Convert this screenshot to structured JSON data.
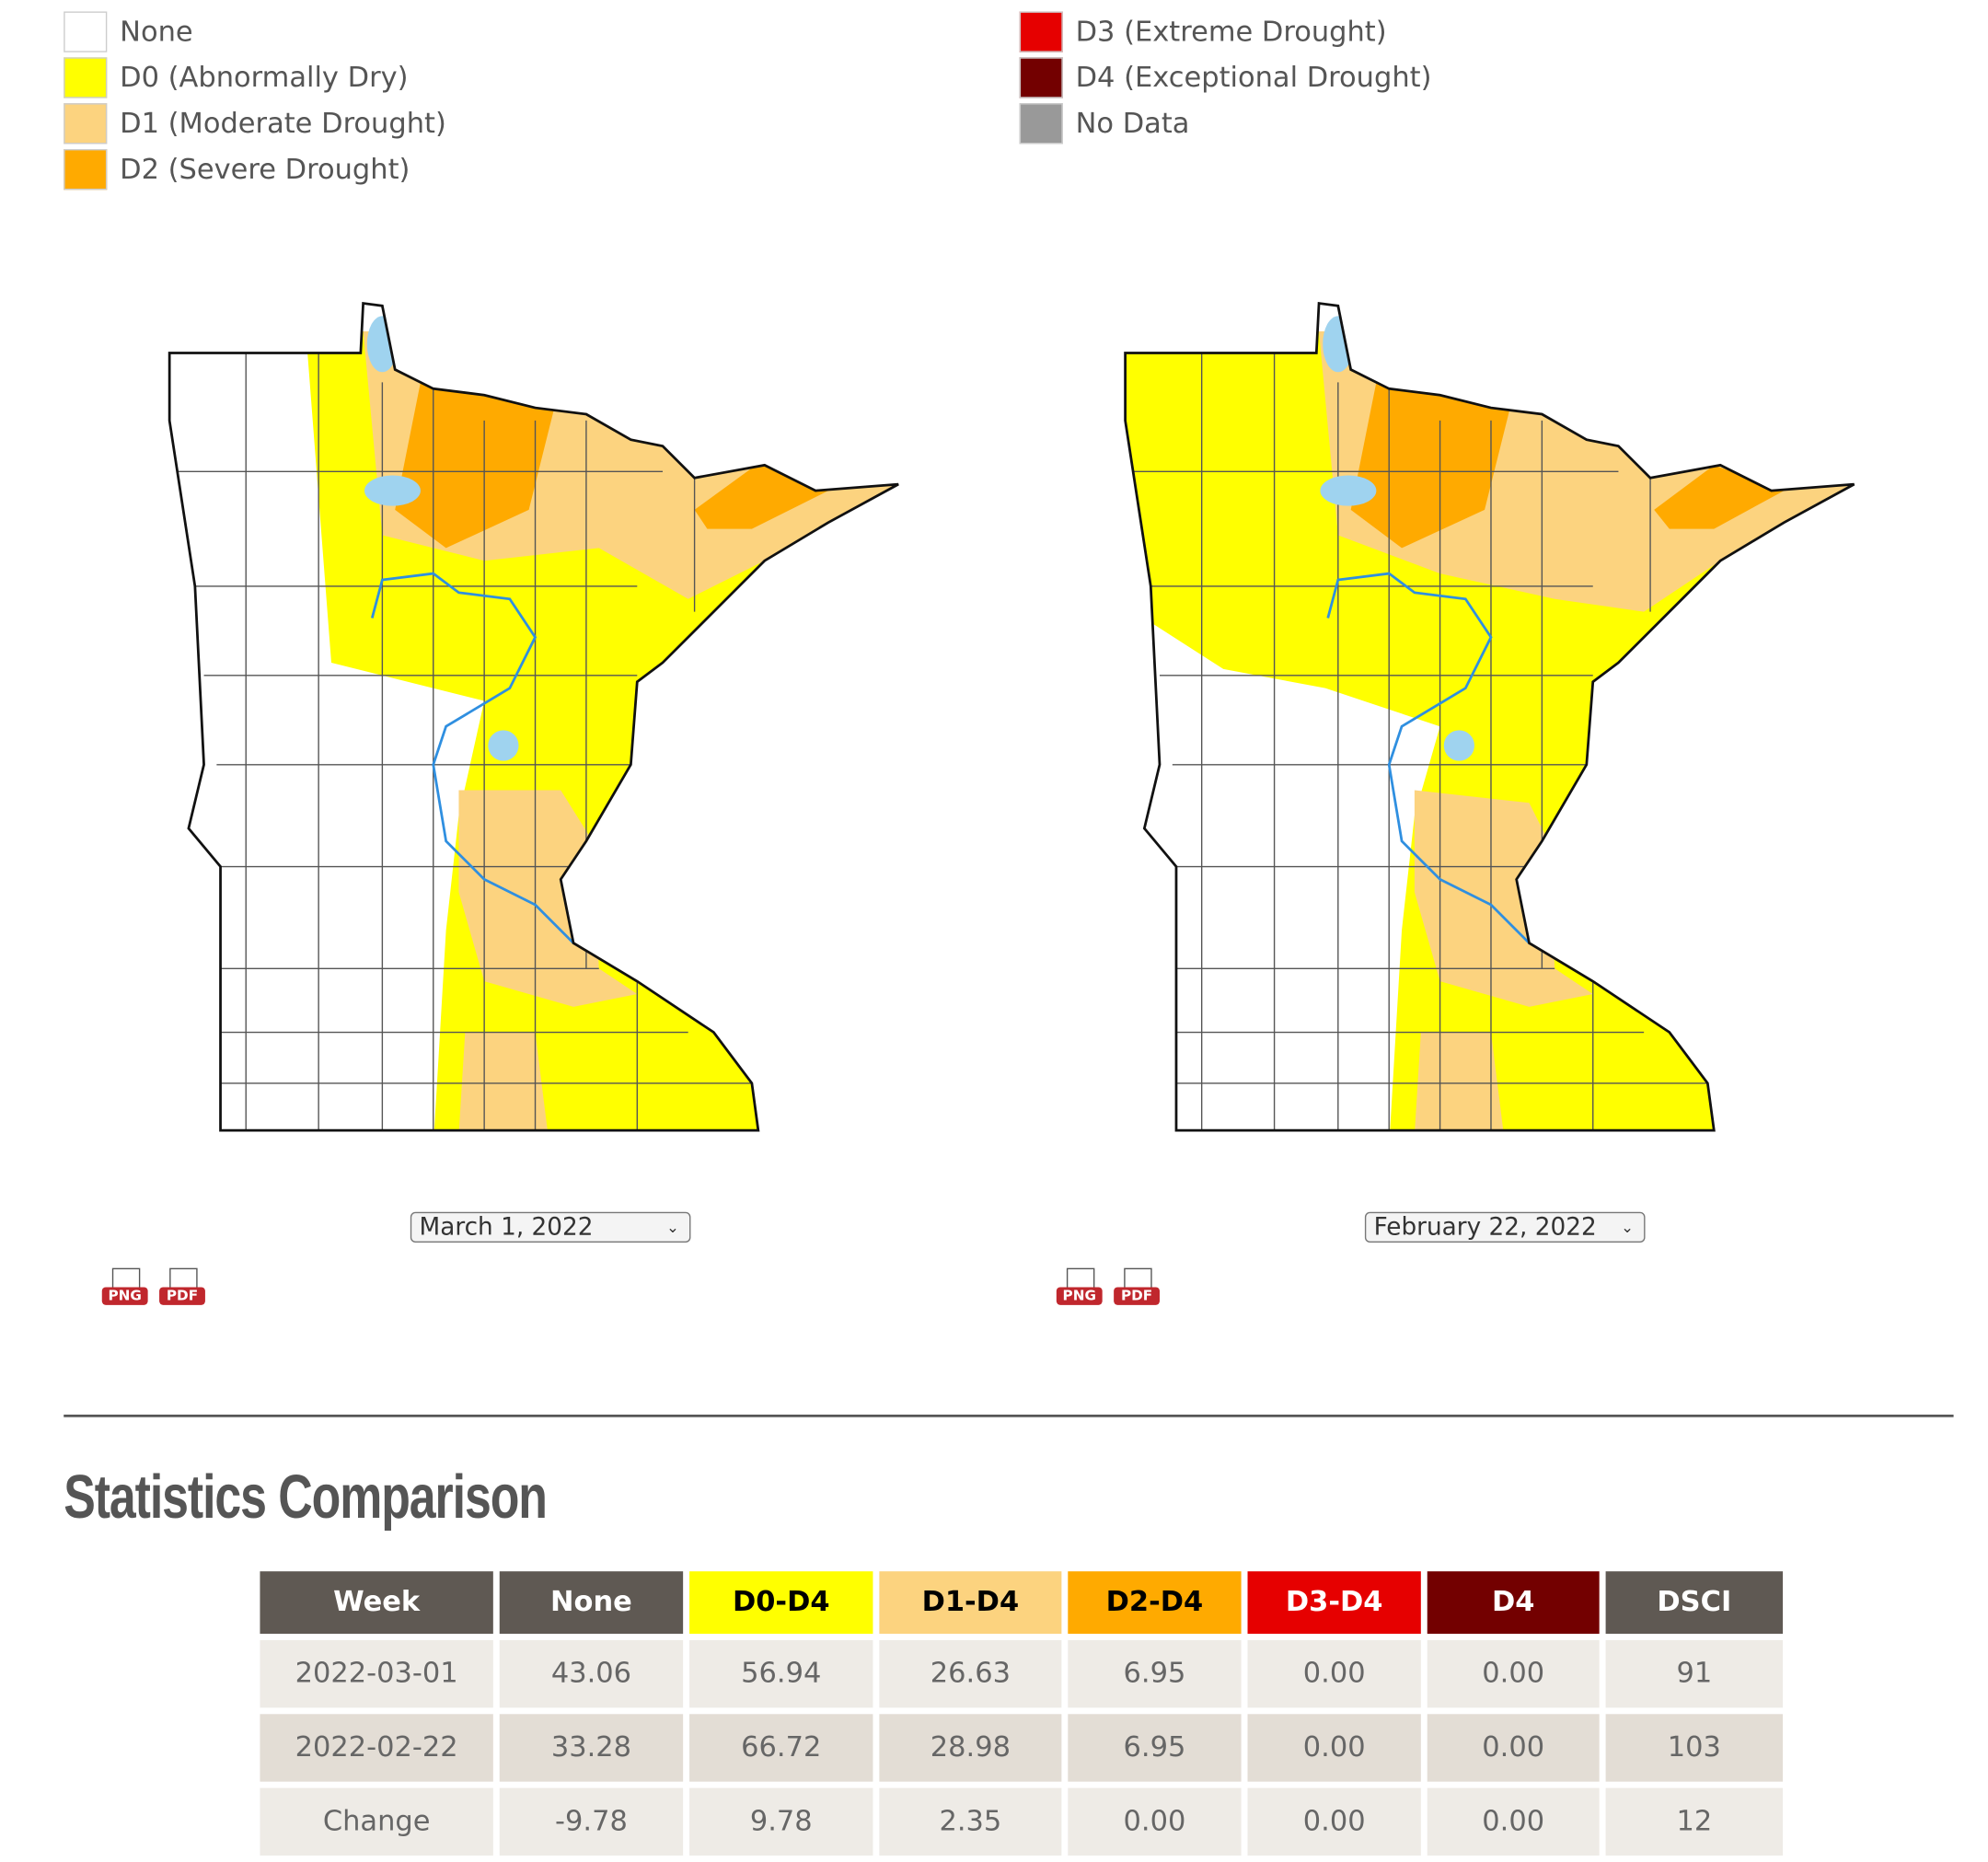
{
  "legend": [
    "None",
    "D0 (Abnormally Dry)",
    "D1 (Moderate Drought)",
    "D2 (Severe Drought)",
    "D3 (Extreme Drought)",
    "D4 (Exceptional Drought)",
    "No Data"
  ],
  "maps": [
    {
      "date": "March 1, 2022",
      "downloads": [
        "PNG",
        "PDF"
      ]
    },
    {
      "date": "February 22, 2022",
      "downloads": [
        "PNG",
        "PDF"
      ]
    }
  ],
  "statistics": {
    "title": "Statistics Comparison",
    "headers": [
      "Week",
      "None",
      "D0-D4",
      "D1-D4",
      "D2-D4",
      "D3-D4",
      "D4",
      "DSCI"
    ],
    "rows": [
      [
        "2022-03-01",
        "43.06",
        "56.94",
        "26.63",
        "6.95",
        "0.00",
        "0.00",
        "91"
      ],
      [
        "2022-02-22",
        "33.28",
        "66.72",
        "28.98",
        "6.95",
        "0.00",
        "0.00",
        "103"
      ],
      [
        "Change",
        "-9.78",
        "9.78",
        "2.35",
        "0.00",
        "0.00",
        "0.00",
        "12"
      ]
    ]
  }
}
